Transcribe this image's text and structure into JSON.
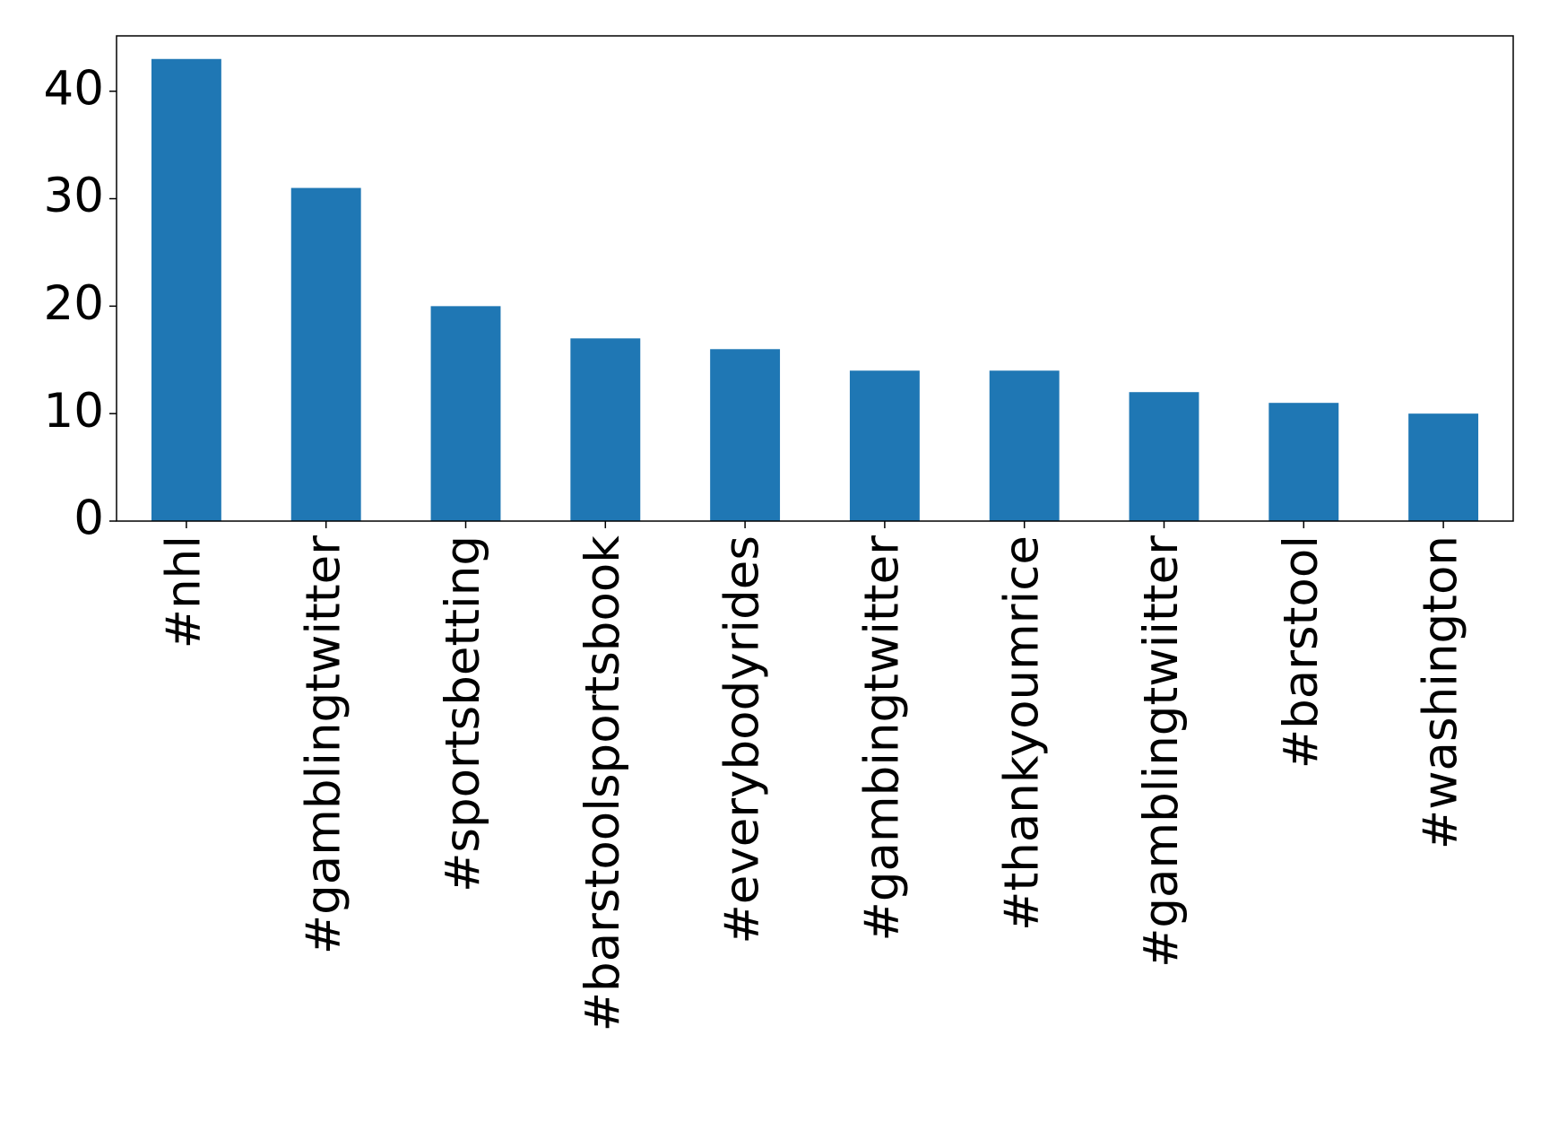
{
  "chart_data": {
    "type": "bar",
    "categories": [
      "#nhl",
      "#gamblingtwitter",
      "#sportsbetting",
      "#barstoolsportsbook",
      "#everybodyrides",
      "#gambingtwitter",
      "#thankyoumrice",
      "#gamblingtwiitter",
      "#barstool",
      "#washington"
    ],
    "values": [
      43,
      31,
      20,
      17,
      16,
      14,
      14,
      12,
      11,
      10
    ],
    "color": "#1f77b4",
    "ylim": [
      0,
      45.15
    ],
    "yticks": [
      0,
      10,
      20,
      30,
      40
    ],
    "grid": false
  }
}
